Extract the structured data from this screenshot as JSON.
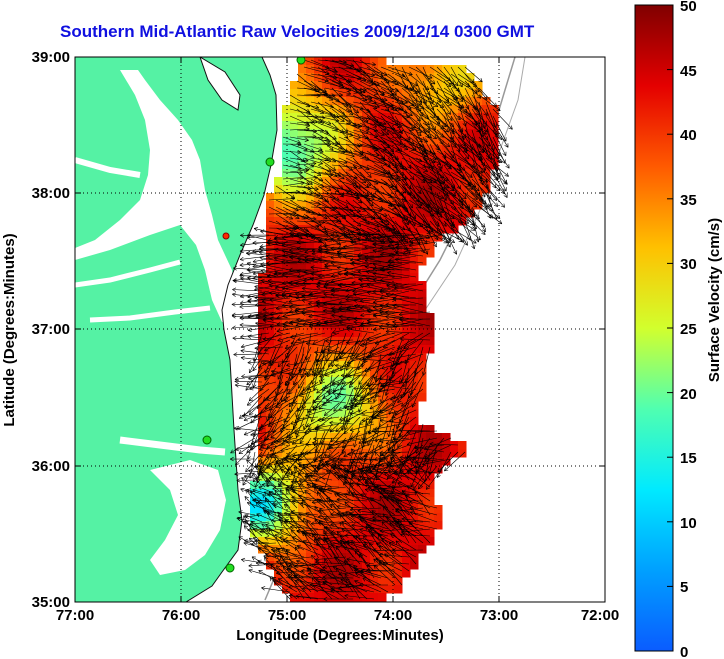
{
  "title": "Southern Mid-Atlantic Raw Velocities 2009/12/14 0300 GMT",
  "x_axis": {
    "label": "Longitude (Degrees:Minutes)",
    "ticks": [
      "77:00",
      "76:00",
      "75:00",
      "74:00",
      "73:00",
      "72:00"
    ],
    "range": [
      -77,
      -72
    ]
  },
  "y_axis": {
    "label": "Latitude (Degrees:Minutes)",
    "ticks": [
      "39:00",
      "38:00",
      "37:00",
      "36:00",
      "35:00"
    ],
    "range": [
      35,
      39
    ]
  },
  "colorbar": {
    "label": "Surface Velocity (cm/s)",
    "ticks": [
      "50",
      "45",
      "40",
      "35",
      "30",
      "25",
      "20",
      "15",
      "10",
      "5",
      "0"
    ],
    "range": [
      0,
      50
    ],
    "colormap": "jet"
  },
  "grid": "dotted",
  "colors": {
    "land": "#55f2a4",
    "title": "#1010e0",
    "station_markers": "#22dd22",
    "station_marker_red": "#ff2a00"
  }
}
